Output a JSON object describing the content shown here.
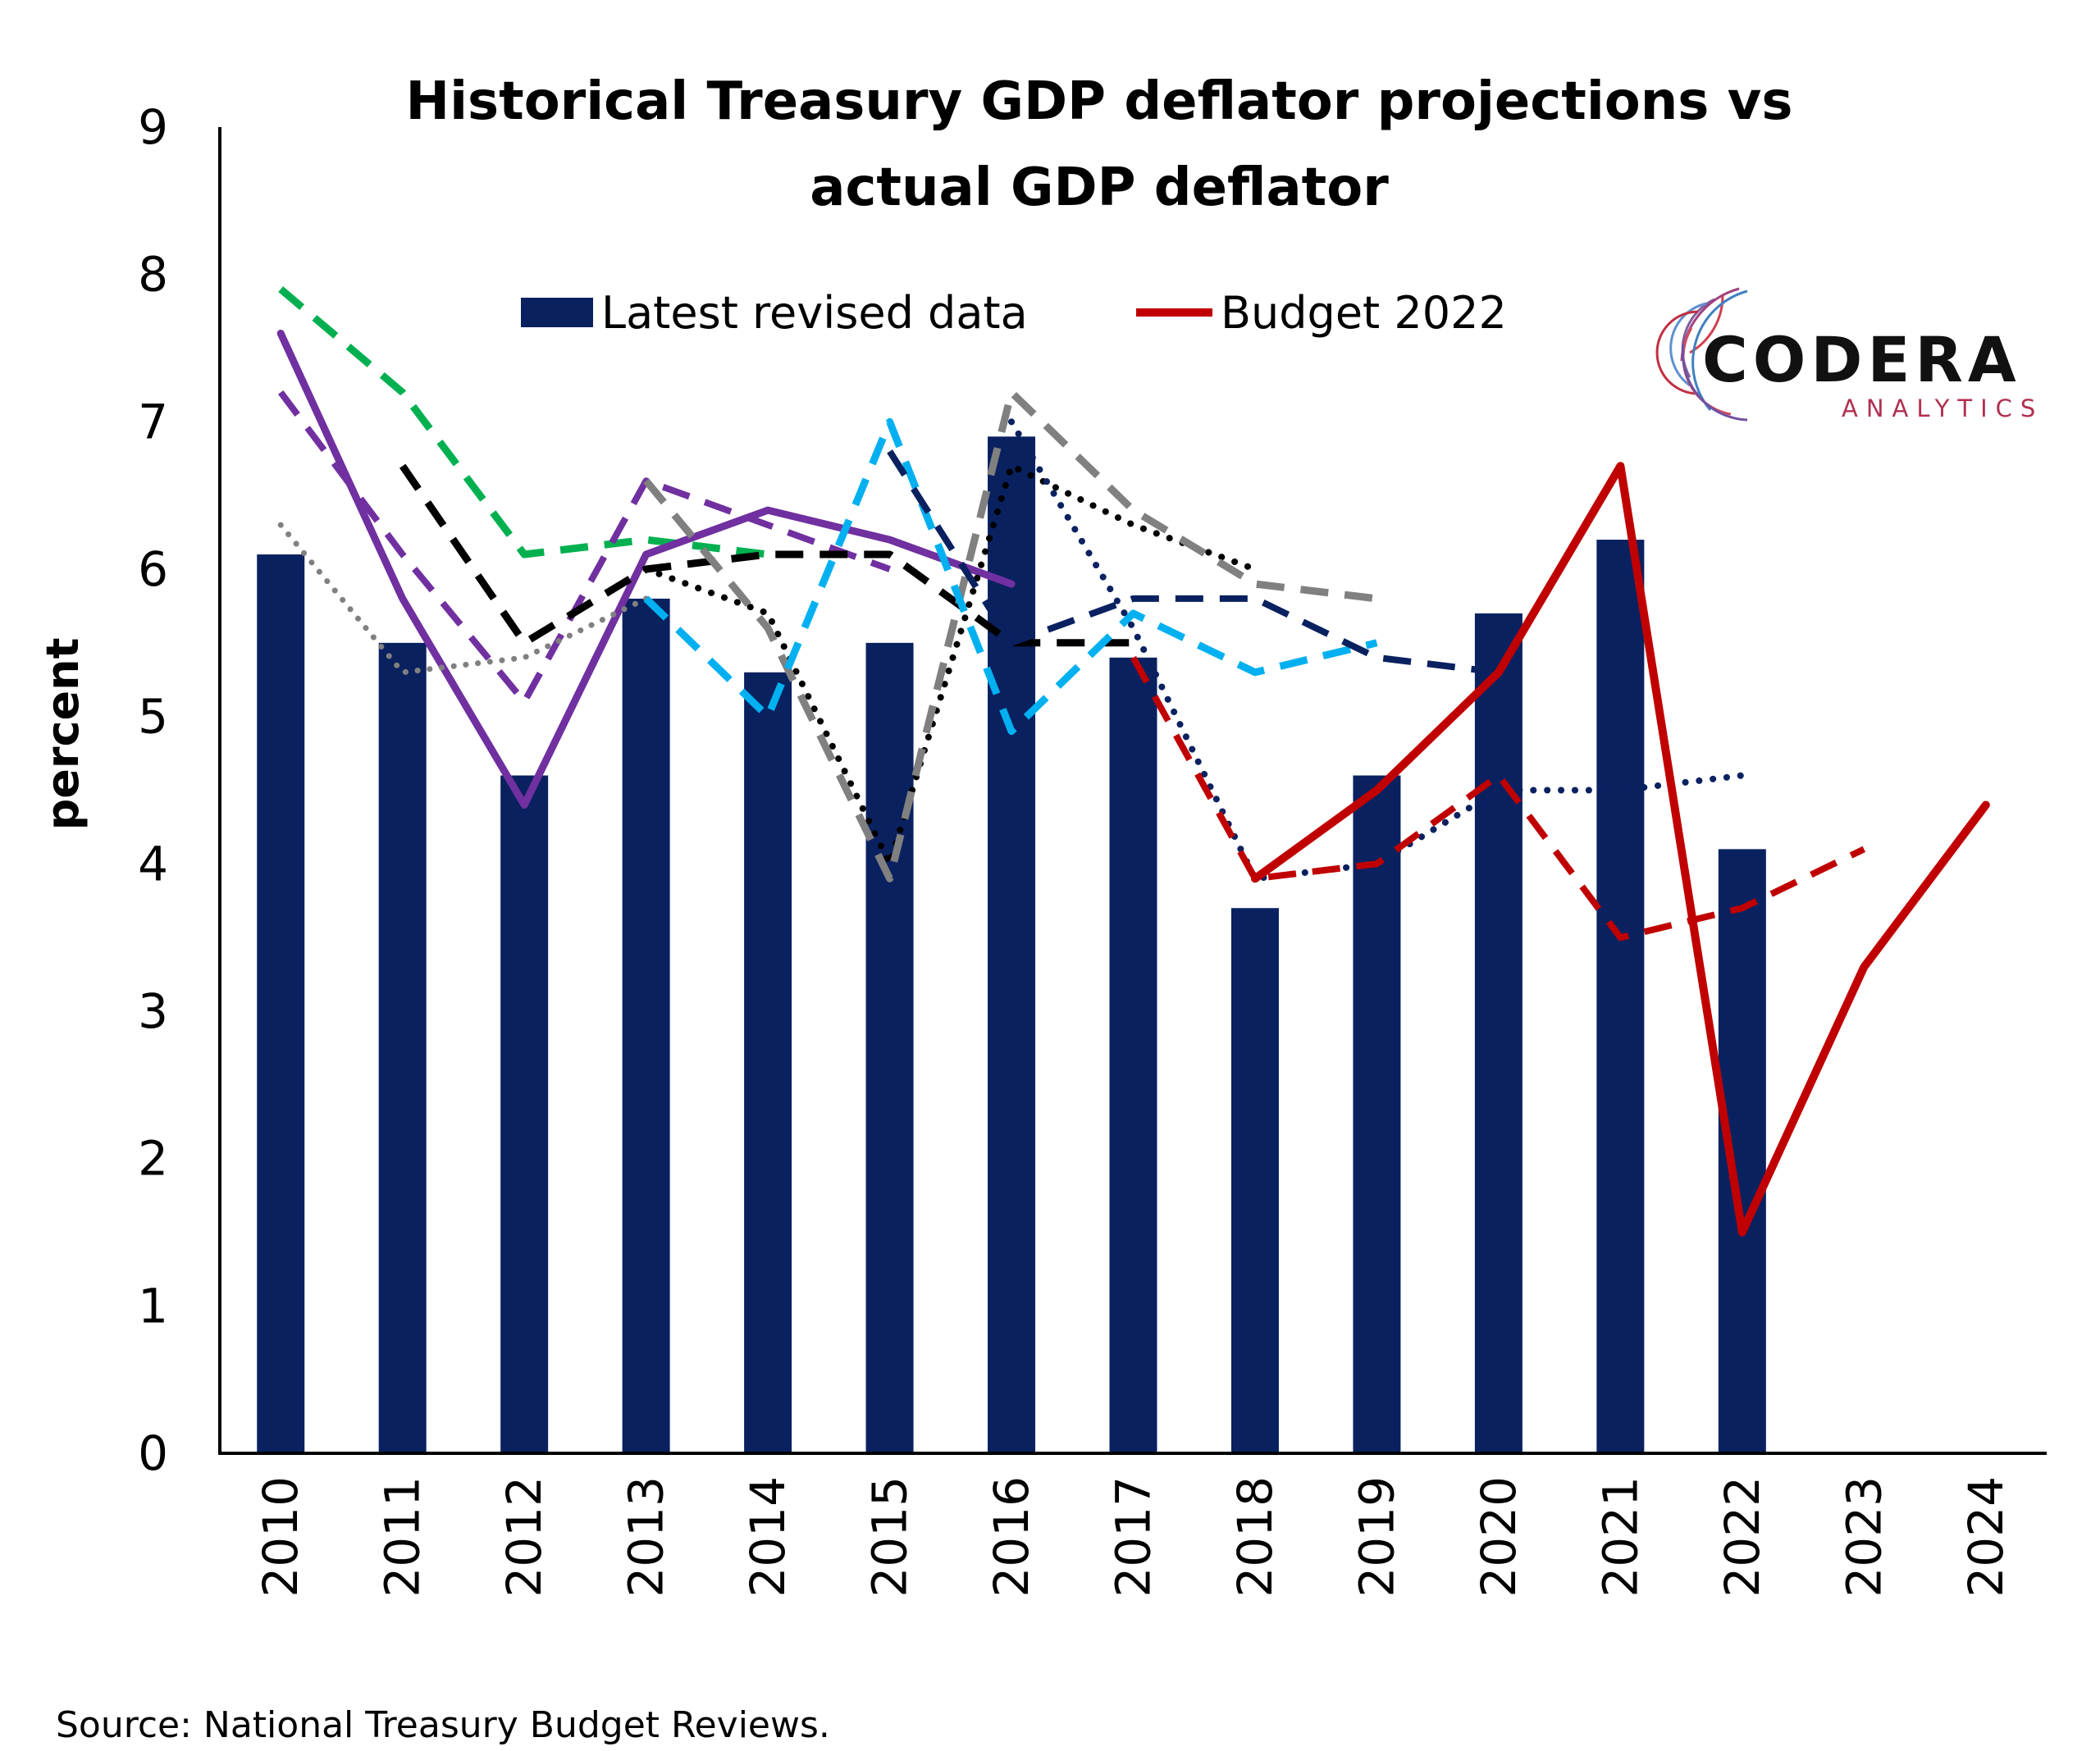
{
  "chart_data": {
    "type": "bar",
    "title_lines": [
      "Historical Treasury GDP deflator projections vs",
      "actual GDP deflator"
    ],
    "ylabel": "percent",
    "xlabel": "",
    "ylim": [
      0,
      9
    ],
    "yticks": [
      "0",
      "1",
      "2",
      "3",
      "4",
      "5",
      "6",
      "7",
      "8",
      "9"
    ],
    "categories": [
      "2010",
      "2011",
      "2012",
      "2013",
      "2014",
      "2015",
      "2016",
      "2017",
      "2018",
      "2019",
      "2020",
      "2021",
      "2022",
      "2023",
      "2024"
    ],
    "grid": false,
    "legend_position": "top",
    "legend": [
      {
        "label": "Latest revised data",
        "kind": "bar",
        "color": "#0a2160"
      },
      {
        "label": "Budget 2022",
        "kind": "line",
        "color": "#c00000"
      }
    ],
    "bars": {
      "name": "Latest revised data",
      "color": "#0a2160",
      "values": [
        6.1,
        5.5,
        4.6,
        5.8,
        5.3,
        5.5,
        6.9,
        5.4,
        3.7,
        4.6,
        5.7,
        6.2,
        4.1,
        null,
        null
      ]
    },
    "series": [
      {
        "color": "#00b050",
        "style": "dashed",
        "width": 9,
        "values": [
          7.9,
          7.2,
          6.1,
          6.2,
          6.1,
          null,
          null,
          null,
          null,
          null,
          null,
          null,
          null,
          null,
          null
        ]
      },
      {
        "color": "#7030a0",
        "style": "solid",
        "width": 9,
        "values": [
          7.6,
          5.8,
          4.4,
          6.1,
          6.4,
          6.2,
          5.9,
          null,
          null,
          null,
          null,
          null,
          null,
          null,
          null
        ]
      },
      {
        "color": "#7030a0",
        "style": "dashed",
        "width": 8,
        "values": [
          7.2,
          6.1,
          5.1,
          6.6,
          6.3,
          6.0,
          null,
          null,
          null,
          null,
          null,
          null,
          null,
          null,
          null
        ]
      },
      {
        "color": "#808080",
        "style": "dotted",
        "width": 7,
        "values": [
          6.3,
          5.3,
          5.4,
          5.8,
          null,
          null,
          null,
          null,
          null,
          null,
          null,
          null,
          null,
          null,
          null
        ]
      },
      {
        "color": "#000000",
        "style": "dashed",
        "width": 9,
        "values": [
          null,
          6.7,
          5.5,
          6.0,
          6.1,
          6.1,
          5.5,
          5.5,
          null,
          null,
          null,
          null,
          null,
          null,
          null
        ]
      },
      {
        "color": "#000000",
        "style": "dotted",
        "width": 8,
        "values": [
          null,
          null,
          null,
          6.0,
          5.7,
          4.0,
          6.7,
          6.3,
          6.0,
          null,
          null,
          null,
          null,
          null,
          null
        ]
      },
      {
        "color": "#808080",
        "style": "dashed",
        "width": 9,
        "values": [
          null,
          null,
          null,
          6.6,
          5.6,
          3.9,
          7.2,
          6.4,
          5.9,
          5.8,
          null,
          null,
          null,
          null,
          null
        ]
      },
      {
        "color": "#00b0f0",
        "style": "dashed",
        "width": 9,
        "values": [
          null,
          null,
          null,
          5.8,
          5.0,
          7.0,
          4.9,
          5.7,
          5.3,
          5.5,
          null,
          null,
          null,
          null,
          null
        ]
      },
      {
        "color": "#0a2160",
        "style": "dashed",
        "width": 8,
        "values": [
          null,
          null,
          null,
          null,
          null,
          6.8,
          5.5,
          5.8,
          5.8,
          5.4,
          5.3,
          null,
          null,
          null,
          null
        ]
      },
      {
        "color": "#0a2160",
        "style": "dotted",
        "width": 8,
        "values": [
          null,
          null,
          null,
          null,
          null,
          null,
          7.0,
          5.6,
          3.9,
          4.0,
          4.5,
          4.5,
          4.6,
          null,
          null
        ]
      },
      {
        "color": "#c00000",
        "style": "dashed",
        "width": 8,
        "values": [
          null,
          null,
          null,
          null,
          null,
          null,
          null,
          5.4,
          3.9,
          4.0,
          4.6,
          3.5,
          3.7,
          4.1,
          null
        ]
      },
      {
        "name": "Budget 2022",
        "color": "#c00000",
        "style": "solid",
        "width": 10,
        "values": [
          null,
          null,
          null,
          null,
          null,
          null,
          null,
          null,
          3.9,
          4.5,
          5.3,
          6.7,
          1.5,
          3.3,
          4.4
        ]
      }
    ]
  },
  "logo": {
    "name": "CODERA",
    "tagline": "ANALYTICS"
  },
  "source": "Source: National Treasury Budget Reviews."
}
